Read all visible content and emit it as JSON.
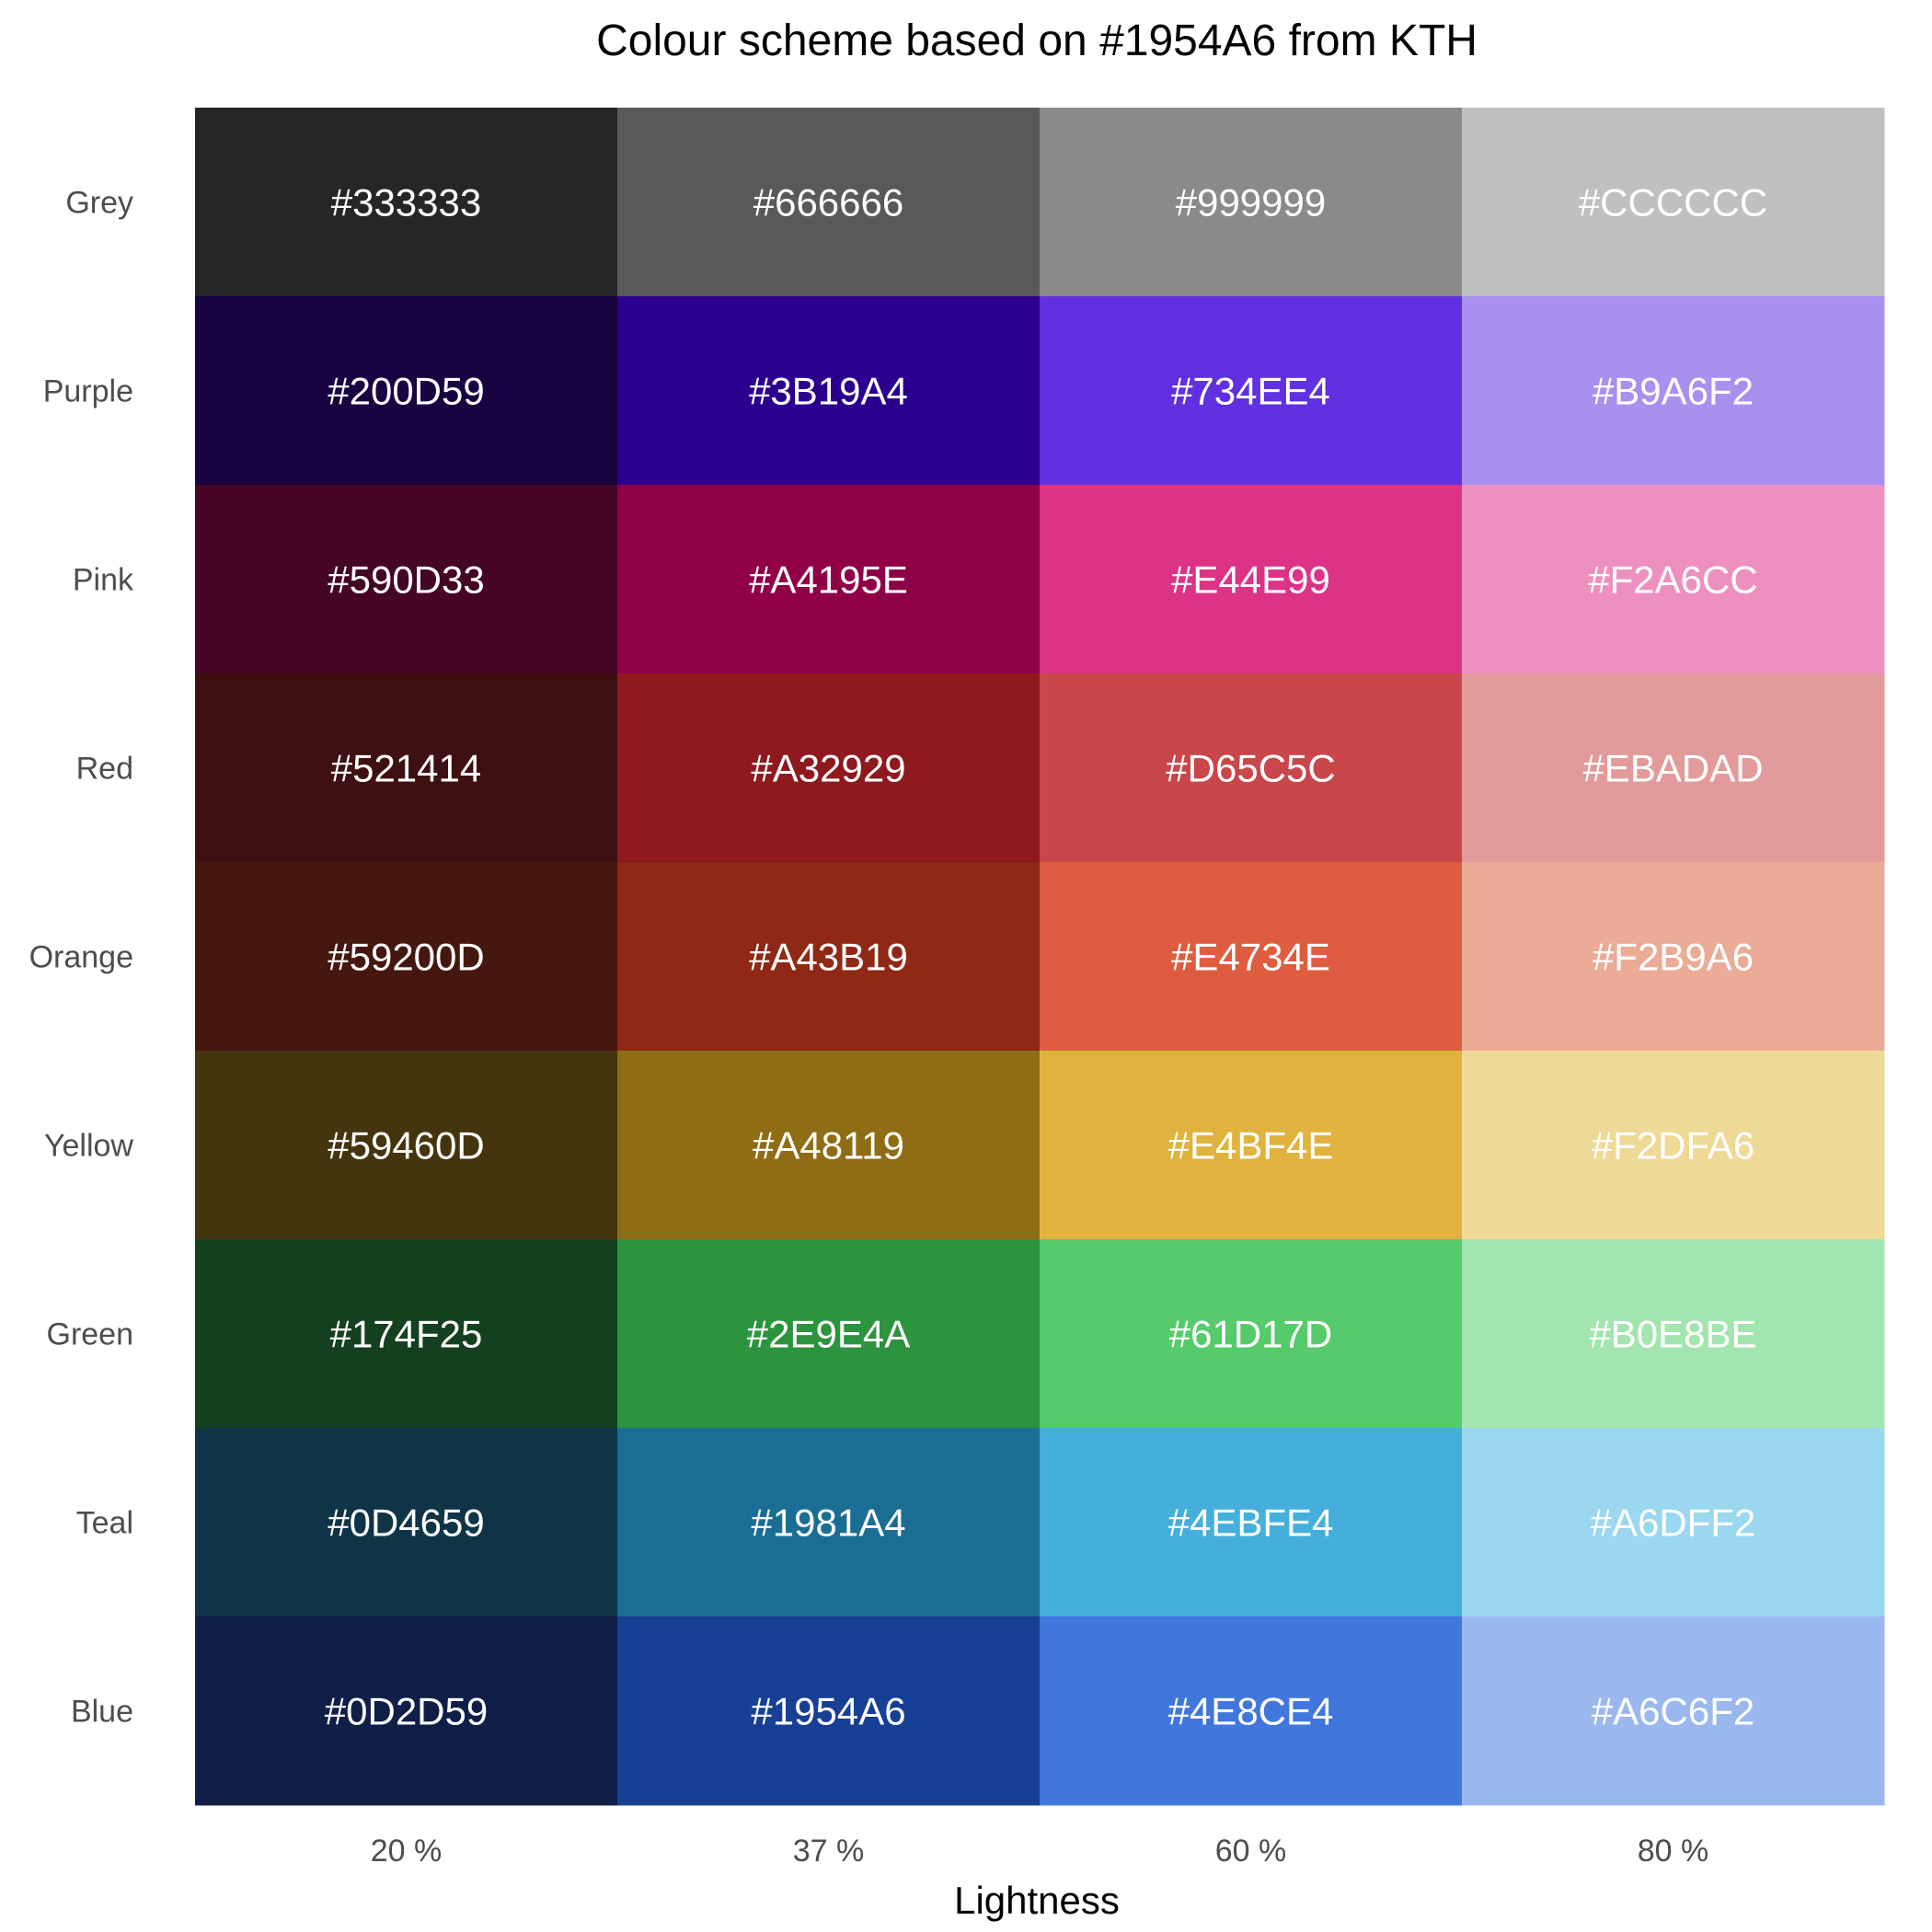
{
  "chart_data": {
    "type": "heatmap",
    "title": "Colour scheme based on #1954A6 from KTH",
    "xlabel": "Lightness",
    "ylabel": "",
    "x_categories": [
      "20 %",
      "37 %",
      "60 %",
      "80 %"
    ],
    "y_categories": [
      "Grey",
      "Purple",
      "Pink",
      "Red",
      "Orange",
      "Yellow",
      "Green",
      "Teal",
      "Blue"
    ],
    "cells": [
      {
        "row": "Grey",
        "labels": [
          "#333333",
          "#666666",
          "#999999",
          "#CCCCCC"
        ],
        "fills": [
          "#262626",
          "#595959",
          "#8a8a8a",
          "#c0c0c0"
        ]
      },
      {
        "row": "Purple",
        "labels": [
          "#200D59",
          "#3B19A4",
          "#734EE4",
          "#B9A6F2"
        ],
        "fills": [
          "#170440",
          "#2c008f",
          "#6130e0",
          "#a890ee"
        ]
      },
      {
        "row": "Pink",
        "labels": [
          "#590D33",
          "#A4195E",
          "#E44E99",
          "#F2A6CC"
        ],
        "fills": [
          "#450524",
          "#8f0047",
          "#dd3386",
          "#ee90bf"
        ]
      },
      {
        "row": "Red",
        "labels": [
          "#521414",
          "#A32929",
          "#D65C5C",
          "#EBADAD"
        ],
        "fills": [
          "#3e1012",
          "#8e191f",
          "#c9464b",
          "#e39a9a"
        ]
      },
      {
        "row": "Orange",
        "labels": [
          "#59200D",
          "#A43B19",
          "#E4734E",
          "#F2B9A6"
        ],
        "fills": [
          "#45170f",
          "#8f2815",
          "#de5d40",
          "#ecab96"
        ]
      },
      {
        "row": "Yellow",
        "labels": [
          "#59460D",
          "#A48119",
          "#E4BF4E",
          "#F2DFA6"
        ],
        "fills": [
          "#45350e",
          "#8f6d15",
          "#dfb33e",
          "#eed996"
        ]
      },
      {
        "row": "Green",
        "labels": [
          "#174F25",
          "#2E9E4A",
          "#61D17D",
          "#B0E8BE"
        ],
        "fills": [
          "#14401f",
          "#2c933e",
          "#55cb6b",
          "#a2e5ae"
        ]
      },
      {
        "row": "Teal",
        "labels": [
          "#0D4659",
          "#1981A4",
          "#4EBFE4",
          "#A6DFF2"
        ],
        "fills": [
          "#103447",
          "#1b6e93",
          "#45afdc",
          "#9bd7ee"
        ]
      },
      {
        "row": "Blue",
        "labels": [
          "#0D2D59",
          "#1954A6",
          "#4E8CE4",
          "#A6C6F2"
        ],
        "fills": [
          "#0f1f47",
          "#173f93",
          "#4177dd",
          "#9ab8ee"
        ]
      }
    ]
  }
}
